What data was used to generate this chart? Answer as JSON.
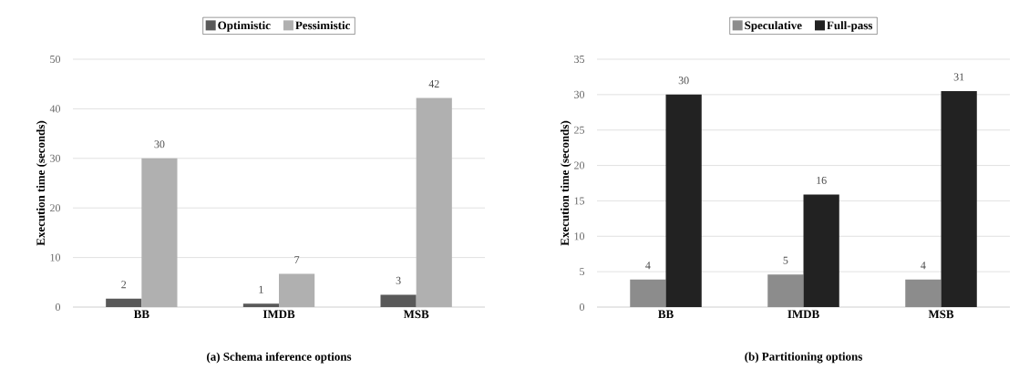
{
  "chart_data": [
    {
      "type": "bar",
      "title": "(a) Schema inference options",
      "ylabel": "Execution time (seconds)",
      "categories": [
        "BB",
        "IMDB",
        "MSB"
      ],
      "series": [
        {
          "name": "Optimistic",
          "color": "#595959",
          "values": [
            1.7,
            0.7,
            2.5
          ],
          "value_labels": [
            "2",
            "1",
            "3"
          ]
        },
        {
          "name": "Pessimistic",
          "color": "#b0b0b0",
          "values": [
            30,
            6.7,
            42.2
          ],
          "value_labels": [
            "30",
            "7",
            "42"
          ]
        }
      ],
      "ylim": [
        0,
        50
      ],
      "yticks": [
        0,
        10,
        20,
        30,
        40,
        50
      ],
      "grid": "y",
      "legend": "top"
    },
    {
      "type": "bar",
      "title": "(b) Partitioning options",
      "ylabel": "Execution time (seconds)",
      "categories": [
        "BB",
        "IMDB",
        "MSB"
      ],
      "series": [
        {
          "name": "Speculative",
          "color": "#8c8c8c",
          "values": [
            3.9,
            4.6,
            3.9
          ],
          "value_labels": [
            "4",
            "5",
            "4"
          ]
        },
        {
          "name": "Full-pass",
          "color": "#222222",
          "values": [
            30,
            15.9,
            30.5
          ],
          "value_labels": [
            "30",
            "16",
            "31"
          ]
        }
      ],
      "ylim": [
        0,
        35
      ],
      "yticks": [
        0,
        5,
        10,
        15,
        20,
        25,
        30,
        35
      ],
      "grid": "y",
      "legend": "top"
    }
  ]
}
